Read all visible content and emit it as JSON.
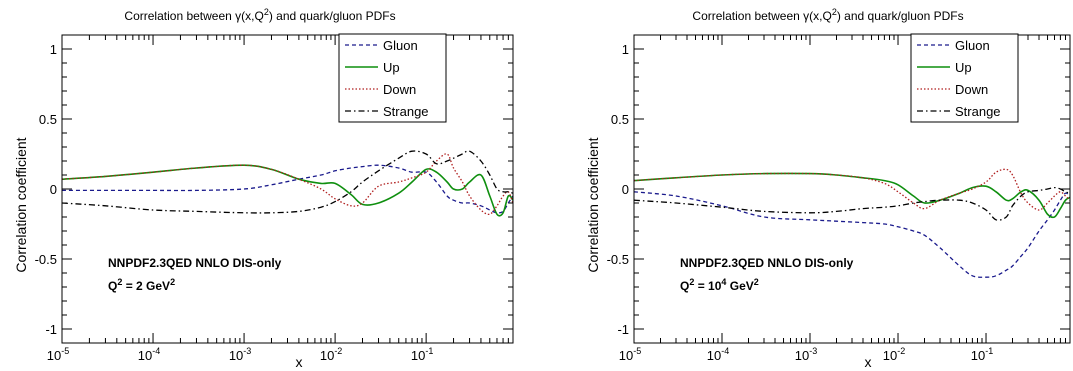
{
  "colors": {
    "gluon": "#1a1a8c",
    "up": "#0f8f0f",
    "down": "#b01e1e",
    "strange": "#000000"
  },
  "chart_data": [
    {
      "type": "line",
      "title_pre": "Correlation between ",
      "title_gamma": "γ(x,Q",
      "title_sup": "2",
      "title_post": ") and quark/gluon PDFs",
      "xlabel": "x",
      "ylabel": "Correlation coefficient",
      "x_scale": "log",
      "xlim": [
        1e-05,
        0.9
      ],
      "ylim": [
        -1.1,
        1.1
      ],
      "x_ticks": [
        {
          "base": "10",
          "exp": "-5",
          "v": 1e-05
        },
        {
          "base": "10",
          "exp": "-4",
          "v": 0.0001
        },
        {
          "base": "10",
          "exp": "-3",
          "v": 0.001
        },
        {
          "base": "10",
          "exp": "-2",
          "v": 0.01
        },
        {
          "base": "10",
          "exp": "-1",
          "v": 0.1
        }
      ],
      "y_ticks": [
        {
          "label": "1",
          "v": 1
        },
        {
          "label": "0.5",
          "v": 0.5
        },
        {
          "label": "0",
          "v": 0
        },
        {
          "label": "-0.5",
          "v": -0.5
        },
        {
          "label": "-1",
          "v": -1
        }
      ],
      "annotation_line1": "NNPDF2.3QED NNLO DIS-only",
      "annotation_q_pre": "Q",
      "annotation_q_sup": "2",
      "annotation_q_mid": " = 2 GeV",
      "annotation_q_unit_sup": "2",
      "annotation_q_unit_post": "",
      "legend_placement": "top-right",
      "series": [
        {
          "name": "Gluon",
          "style": "dashed",
          "color_key": "gluon",
          "x": [
            1e-05,
            3e-05,
            0.0001,
            0.0003,
            0.001,
            0.002,
            0.004,
            0.007,
            0.01,
            0.015,
            0.02,
            0.03,
            0.05,
            0.07,
            0.1,
            0.13,
            0.17,
            0.2,
            0.25,
            0.3,
            0.4,
            0.5,
            0.6,
            0.7,
            0.8,
            0.9
          ],
          "y": [
            -0.01,
            -0.01,
            -0.01,
            -0.01,
            0.0,
            0.03,
            0.07,
            0.1,
            0.13,
            0.15,
            0.16,
            0.17,
            0.15,
            0.12,
            0.12,
            0.05,
            -0.05,
            -0.08,
            -0.1,
            -0.1,
            -0.12,
            -0.15,
            -0.17,
            -0.16,
            -0.1,
            -0.05
          ]
        },
        {
          "name": "Up",
          "style": "solid",
          "color_key": "up",
          "x": [
            1e-05,
            3e-05,
            0.0001,
            0.0003,
            0.001,
            0.002,
            0.004,
            0.007,
            0.01,
            0.015,
            0.02,
            0.03,
            0.05,
            0.07,
            0.1,
            0.13,
            0.17,
            0.2,
            0.25,
            0.3,
            0.4,
            0.5,
            0.6,
            0.7,
            0.8,
            0.9
          ],
          "y": [
            0.07,
            0.09,
            0.12,
            0.15,
            0.17,
            0.14,
            0.07,
            0.04,
            0.04,
            -0.04,
            -0.11,
            -0.1,
            -0.03,
            0.05,
            0.14,
            0.12,
            0.05,
            0.0,
            0.0,
            0.05,
            0.1,
            -0.05,
            -0.18,
            -0.17,
            -0.05,
            -0.08
          ]
        },
        {
          "name": "Down",
          "style": "dotted",
          "color_key": "down",
          "x": [
            1e-05,
            3e-05,
            0.0001,
            0.0003,
            0.001,
            0.002,
            0.004,
            0.007,
            0.01,
            0.015,
            0.02,
            0.03,
            0.05,
            0.07,
            0.1,
            0.13,
            0.17,
            0.2,
            0.25,
            0.3,
            0.4,
            0.5,
            0.6,
            0.7,
            0.8,
            0.9
          ],
          "y": [
            0.07,
            0.09,
            0.12,
            0.15,
            0.17,
            0.14,
            0.07,
            0.0,
            -0.07,
            -0.12,
            -0.1,
            0.02,
            0.05,
            0.08,
            0.12,
            0.2,
            0.25,
            0.15,
            0.05,
            -0.05,
            -0.15,
            -0.18,
            -0.12,
            -0.05,
            -0.02,
            -0.1
          ]
        },
        {
          "name": "Strange",
          "style": "dashdot",
          "color_key": "strange",
          "x": [
            1e-05,
            3e-05,
            0.0001,
            0.0003,
            0.001,
            0.002,
            0.004,
            0.007,
            0.01,
            0.015,
            0.02,
            0.03,
            0.05,
            0.07,
            0.1,
            0.13,
            0.17,
            0.2,
            0.25,
            0.3,
            0.4,
            0.5,
            0.6,
            0.7,
            0.8,
            0.9
          ],
          "y": [
            -0.1,
            -0.12,
            -0.15,
            -0.16,
            -0.17,
            -0.17,
            -0.16,
            -0.13,
            -0.09,
            -0.02,
            0.05,
            0.13,
            0.22,
            0.27,
            0.25,
            0.18,
            0.2,
            0.22,
            0.25,
            0.27,
            0.2,
            0.1,
            0.0,
            -0.02,
            -0.02,
            -0.03
          ]
        }
      ]
    },
    {
      "type": "line",
      "title_pre": "Correlation between ",
      "title_gamma": "γ(x,Q",
      "title_sup": "2",
      "title_post": ") and quark/gluon PDFs",
      "xlabel": "x",
      "ylabel": "Correlation coefficient",
      "x_scale": "log",
      "xlim": [
        1e-05,
        0.9
      ],
      "ylim": [
        -1.1,
        1.1
      ],
      "x_ticks": [
        {
          "base": "10",
          "exp": "-5",
          "v": 1e-05
        },
        {
          "base": "10",
          "exp": "-4",
          "v": 0.0001
        },
        {
          "base": "10",
          "exp": "-3",
          "v": 0.001
        },
        {
          "base": "10",
          "exp": "-2",
          "v": 0.01
        },
        {
          "base": "10",
          "exp": "-1",
          "v": 0.1
        }
      ],
      "y_ticks": [
        {
          "label": "1",
          "v": 1
        },
        {
          "label": "0.5",
          "v": 0.5
        },
        {
          "label": "0",
          "v": 0
        },
        {
          "label": "-0.5",
          "v": -0.5
        },
        {
          "label": "-1",
          "v": -1
        }
      ],
      "annotation_line1": "NNPDF2.3QED NNLO DIS-only",
      "annotation_q_pre": "Q",
      "annotation_q_sup": "2",
      "annotation_q_mid": " = 10",
      "annotation_q_unit_sup": "4",
      "annotation_q_unit_post": " GeV",
      "annotation_q_tail_sup": "2",
      "legend_placement": "top-right",
      "series": [
        {
          "name": "Gluon",
          "style": "dashed",
          "color_key": "gluon",
          "x": [
            1e-05,
            3e-05,
            0.0001,
            0.0003,
            0.001,
            0.002,
            0.004,
            0.007,
            0.01,
            0.015,
            0.02,
            0.03,
            0.05,
            0.07,
            0.1,
            0.13,
            0.17,
            0.2,
            0.25,
            0.3,
            0.4,
            0.5,
            0.6,
            0.7,
            0.8,
            0.9
          ],
          "y": [
            -0.02,
            -0.05,
            -0.12,
            -0.2,
            -0.22,
            -0.23,
            -0.24,
            -0.25,
            -0.27,
            -0.3,
            -0.33,
            -0.42,
            -0.55,
            -0.62,
            -0.63,
            -0.62,
            -0.58,
            -0.55,
            -0.48,
            -0.42,
            -0.3,
            -0.22,
            -0.15,
            -0.08,
            -0.03,
            -0.05
          ]
        },
        {
          "name": "Up",
          "style": "solid",
          "color_key": "up",
          "x": [
            1e-05,
            3e-05,
            0.0001,
            0.0003,
            0.001,
            0.002,
            0.004,
            0.007,
            0.01,
            0.015,
            0.02,
            0.03,
            0.05,
            0.07,
            0.1,
            0.13,
            0.17,
            0.2,
            0.25,
            0.3,
            0.4,
            0.5,
            0.6,
            0.7,
            0.8,
            0.9
          ],
          "y": [
            0.06,
            0.08,
            0.1,
            0.11,
            0.11,
            0.1,
            0.08,
            0.06,
            0.03,
            -0.05,
            -0.1,
            -0.08,
            -0.03,
            0.01,
            0.02,
            -0.02,
            -0.08,
            -0.07,
            -0.02,
            -0.01,
            -0.08,
            -0.18,
            -0.2,
            -0.14,
            -0.08,
            -0.06
          ]
        },
        {
          "name": "Down",
          "style": "dotted",
          "color_key": "down",
          "x": [
            1e-05,
            3e-05,
            0.0001,
            0.0003,
            0.001,
            0.002,
            0.004,
            0.007,
            0.01,
            0.015,
            0.02,
            0.03,
            0.05,
            0.07,
            0.1,
            0.13,
            0.17,
            0.2,
            0.25,
            0.3,
            0.4,
            0.5,
            0.6,
            0.7,
            0.8,
            0.9
          ],
          "y": [
            0.06,
            0.08,
            0.1,
            0.11,
            0.11,
            0.1,
            0.08,
            0.04,
            -0.02,
            -0.1,
            -0.14,
            -0.08,
            -0.03,
            0.0,
            0.05,
            0.12,
            0.14,
            0.1,
            -0.03,
            -0.1,
            -0.15,
            -0.1,
            -0.05,
            -0.02,
            -0.05,
            -0.08
          ]
        },
        {
          "name": "Strange",
          "style": "dashdot",
          "color_key": "strange",
          "x": [
            1e-05,
            3e-05,
            0.0001,
            0.0003,
            0.001,
            0.002,
            0.004,
            0.007,
            0.01,
            0.015,
            0.02,
            0.03,
            0.05,
            0.07,
            0.1,
            0.13,
            0.17,
            0.2,
            0.25,
            0.3,
            0.4,
            0.5,
            0.6,
            0.7,
            0.8,
            0.9
          ],
          "y": [
            -0.08,
            -0.1,
            -0.13,
            -0.16,
            -0.17,
            -0.16,
            -0.14,
            -0.13,
            -0.12,
            -0.1,
            -0.09,
            -0.08,
            -0.08,
            -0.1,
            -0.15,
            -0.22,
            -0.2,
            -0.12,
            -0.05,
            -0.02,
            -0.01,
            0.0,
            0.01,
            0.0,
            -0.02,
            -0.03
          ]
        }
      ]
    }
  ]
}
